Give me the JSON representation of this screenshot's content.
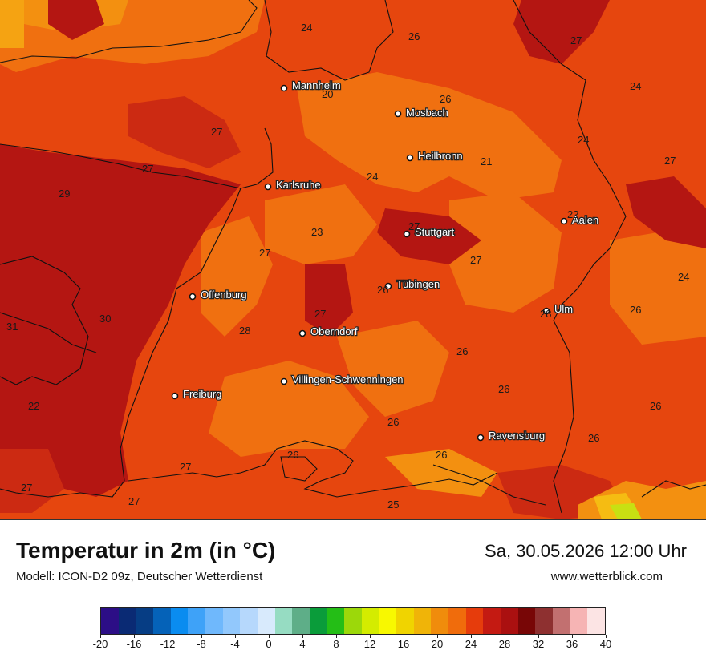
{
  "map": {
    "title": "Temperatur in 2m (in °C)",
    "model": "Modell: ICON-D2 09z, Deutscher Wetterdienst",
    "datetime": "Sa, 30.05.2026 12:00 Uhr",
    "website": "www.wetterblick.com",
    "cities": [
      "Mannheim",
      "Mosbach",
      "Heilbronn",
      "Karlsruhe",
      "Stuttgart",
      "Aalen",
      "Tübingen",
      "Offenburg",
      "Ulm",
      "Oberndorf",
      "Villingen-Schwenningen",
      "Freiburg",
      "Ravensburg"
    ],
    "values": [
      "24",
      "26",
      "27",
      "20",
      "26",
      "24",
      "27",
      "24",
      "21",
      "27",
      "27",
      "29",
      "24",
      "22",
      "23",
      "27",
      "27",
      "27",
      "24",
      "26",
      "31",
      "30",
      "27",
      "28",
      "28",
      "26",
      "26",
      "22",
      "26",
      "26",
      "26",
      "26",
      "27",
      "26",
      "27",
      "27",
      "25",
      "26"
    ],
    "legend": {
      "colors": [
        "#2c0e86",
        "#0a2a74",
        "#063d84",
        "#0562b8",
        "#0a8cf0",
        "#3ea2f8",
        "#6fb8fc",
        "#92c8fc",
        "#b6d8fc",
        "#d8eafc",
        "#96dcc2",
        "#5eae88",
        "#0a9c3a",
        "#24be16",
        "#9cd80a",
        "#d4ec00",
        "#f8f800",
        "#f0d400",
        "#f0b408",
        "#f08c0c",
        "#f06c0c",
        "#e63c0c",
        "#c41a12",
        "#aa1010",
        "#780606",
        "#8e3030",
        "#c27070",
        "#f6b4b4",
        "#fce4e4"
      ],
      "ticks": [
        "-20",
        "-16",
        "-12",
        "-8",
        "-4",
        "0",
        "4",
        "8",
        "12",
        "16",
        "20",
        "24",
        "28",
        "32",
        "36",
        "40"
      ]
    }
  }
}
